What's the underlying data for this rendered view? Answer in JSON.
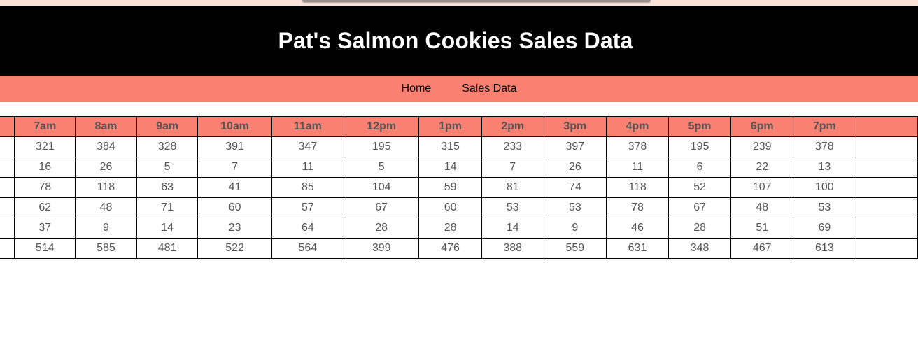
{
  "header": {
    "title": "Pat's Salmon Cookies Sales Data"
  },
  "nav": {
    "home_label": "Home",
    "sales_label": "Sales Data"
  },
  "colors": {
    "header_bg": "#000000",
    "nav_bg": "#fa8072",
    "table_header_bg": "#fa8072"
  },
  "table": {
    "headers": [
      "",
      "7am",
      "8am",
      "9am",
      "10am",
      "11am",
      "12pm",
      "1pm",
      "2pm",
      "3pm",
      "4pm",
      "5pm",
      "6pm",
      "7pm",
      ""
    ],
    "rows": [
      [
        "",
        "321",
        "384",
        "328",
        "391",
        "347",
        "195",
        "315",
        "233",
        "397",
        "378",
        "195",
        "239",
        "378",
        ""
      ],
      [
        "",
        "16",
        "26",
        "5",
        "7",
        "11",
        "5",
        "14",
        "7",
        "26",
        "11",
        "6",
        "22",
        "13",
        ""
      ],
      [
        "",
        "78",
        "118",
        "63",
        "41",
        "85",
        "104",
        "59",
        "81",
        "74",
        "118",
        "52",
        "107",
        "100",
        ""
      ],
      [
        "",
        "62",
        "48",
        "71",
        "60",
        "57",
        "67",
        "60",
        "53",
        "53",
        "78",
        "67",
        "48",
        "53",
        ""
      ],
      [
        "",
        "37",
        "9",
        "14",
        "23",
        "64",
        "28",
        "28",
        "14",
        "9",
        "46",
        "28",
        "51",
        "69",
        ""
      ],
      [
        "",
        "514",
        "585",
        "481",
        "522",
        "564",
        "399",
        "476",
        "388",
        "559",
        "631",
        "348",
        "467",
        "613",
        ""
      ]
    ]
  }
}
